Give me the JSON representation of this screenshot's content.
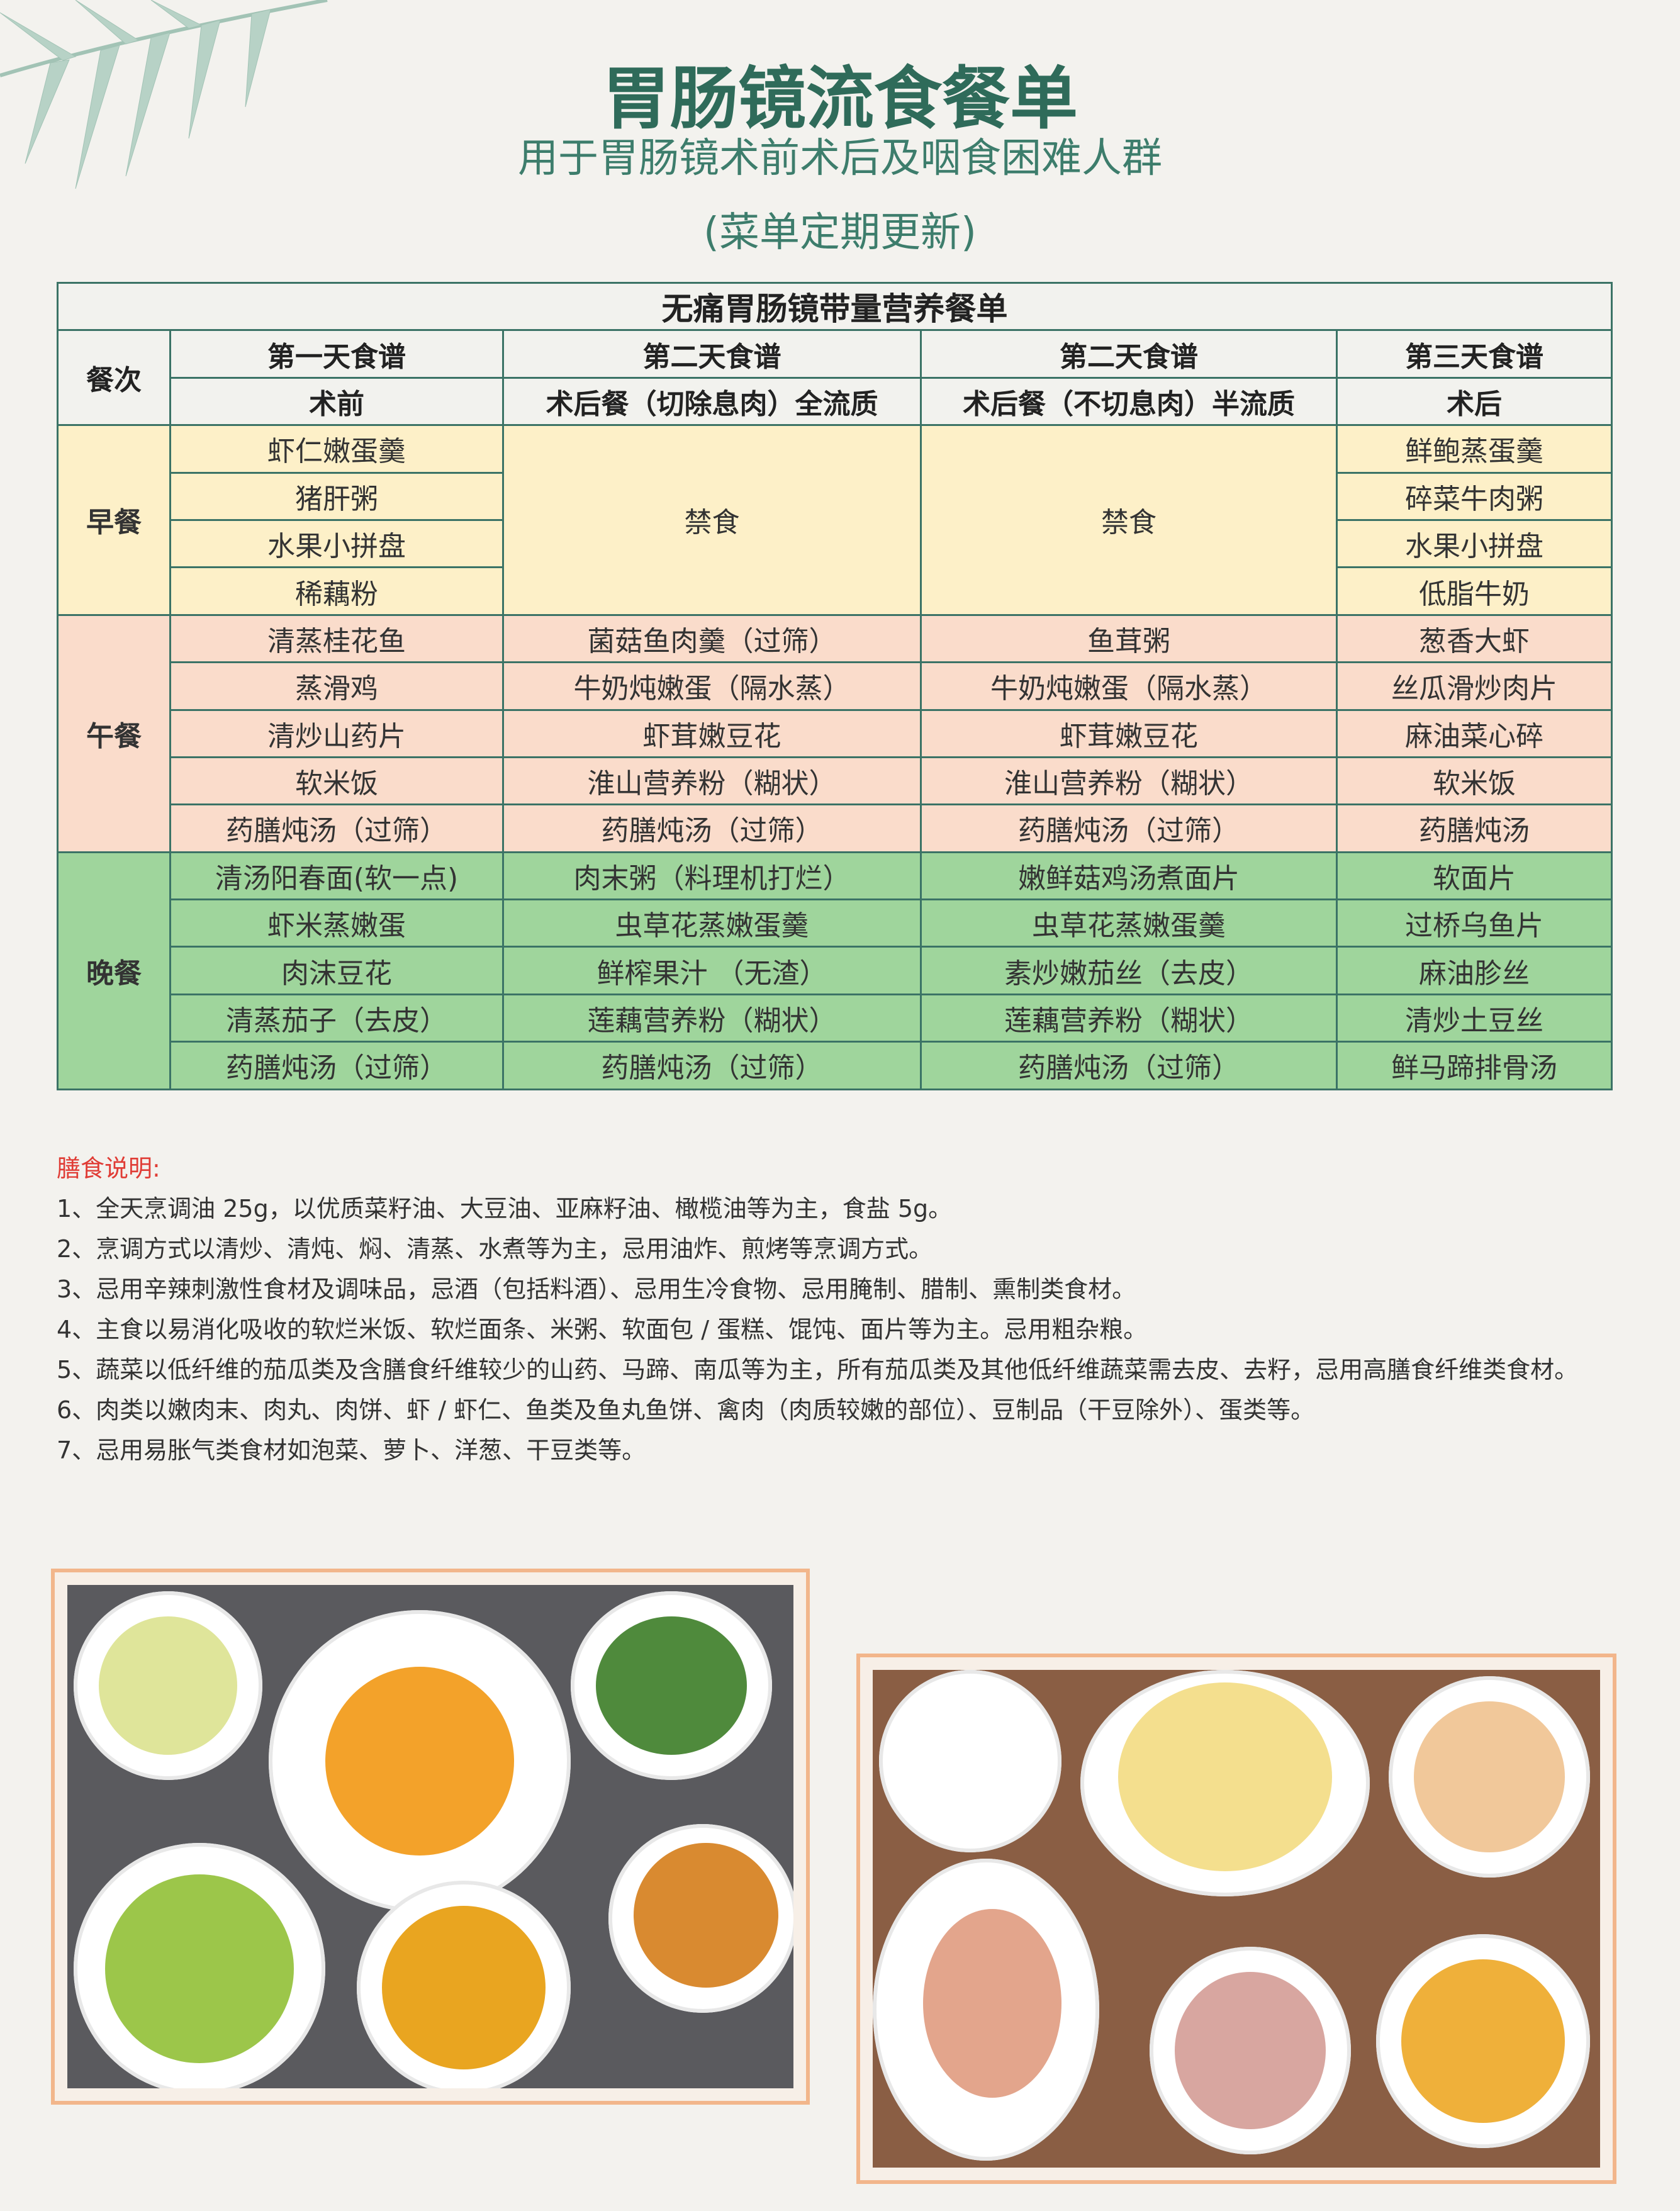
{
  "header": {
    "title": "胃肠镜流食餐单",
    "subtitle": "用于胃肠镜术前术后及咽食困难人群",
    "note": "(菜单定期更新)"
  },
  "table": {
    "title": "无痛胃肠镜带量营养餐单",
    "meal_col": "餐次",
    "days": [
      "第一天食谱",
      "第二天食谱",
      "第二天食谱",
      "第三天食谱"
    ],
    "phases": [
      "术前",
      "术后餐（切除息肉）全流质",
      "术后餐（不切息肉）半流质",
      "术后"
    ],
    "breakfast": {
      "label": "早餐",
      "day1": [
        "虾仁嫩蛋羹",
        "猪肝粥",
        "水果小拼盘",
        "稀藕粉"
      ],
      "day2": "禁食",
      "day2b": "禁食",
      "day3": [
        "鲜鲍蒸蛋羹",
        "碎菜牛肉粥",
        "水果小拼盘",
        "低脂牛奶"
      ]
    },
    "lunch": {
      "label": "午餐",
      "rows": [
        [
          "清蒸桂花鱼",
          "菌菇鱼肉羹（过筛）",
          "鱼茸粥",
          "葱香大虾"
        ],
        [
          "蒸滑鸡",
          "牛奶炖嫩蛋（隔水蒸）",
          "牛奶炖嫩蛋（隔水蒸）",
          "丝瓜滑炒肉片"
        ],
        [
          "清炒山药片",
          "虾茸嫩豆花",
          "虾茸嫩豆花",
          "麻油菜心碎"
        ],
        [
          "软米饭",
          "淮山营养粉（糊状）",
          "淮山营养粉（糊状）",
          "软米饭"
        ],
        [
          "药膳炖汤（过筛）",
          "药膳炖汤（过筛）",
          "药膳炖汤（过筛）",
          "药膳炖汤"
        ]
      ]
    },
    "dinner": {
      "label": "晚餐",
      "rows": [
        [
          "清汤阳春面(软一点)",
          "肉末粥（料理机打烂）",
          "嫩鲜菇鸡汤煮面片",
          "软面片"
        ],
        [
          "虾米蒸嫩蛋",
          "虫草花蒸嫩蛋羹",
          "虫草花蒸嫩蛋羹",
          "过桥乌鱼片"
        ],
        [
          "肉沫豆花",
          "鲜榨果汁 （无渣）",
          "素炒嫩茄丝（去皮）",
          "麻油胗丝"
        ],
        [
          "清蒸茄子（去皮）",
          "莲藕营养粉（糊状）",
          "莲藕营养粉（糊状）",
          "清炒土豆丝"
        ],
        [
          "药膳炖汤（过筛）",
          "药膳炖汤（过筛）",
          "药膳炖汤（过筛）",
          "鲜马蹄排骨汤"
        ]
      ]
    }
  },
  "notes": {
    "heading": "膳食说明:",
    "items": [
      "1、全天烹调油 25g，以优质菜籽油、大豆油、亚麻籽油、橄榄油等为主，食盐 5g。",
      "2、烹调方式以清炒、清炖、焖、清蒸、水煮等为主，忌用油炸、煎烤等烹调方式。",
      "3、忌用辛辣刺激性食材及调味品，忌酒（包括料酒）、忌用生冷食物、忌用腌制、腊制、熏制类食材。",
      "4、主食以易消化吸收的软烂米饭、软烂面条、米粥、软面包 / 蛋糕、馄饨、面片等为主。忌用粗杂粮。",
      "5、蔬菜以低纤维的茄瓜类及含膳食纤维较少的山药、马蹄、南瓜等为主，所有茄瓜类及其他低纤维蔬菜需去皮、去籽，忌用高膳食纤维类食材。",
      "6、肉类以嫩肉末、肉丸、肉饼、虾 / 虾仁、鱼类及鱼丸鱼饼、禽肉（肉质较嫩的部位）、豆制品（干豆除外）、蛋类等。",
      "7、忌用易胀气类食材如泡菜、萝卜、洋葱、干豆类等。"
    ]
  },
  "colors": {
    "title": "#2f6b5a",
    "border": "#3b7366",
    "breakfast": "#fdf0c8",
    "lunch": "#fadccb",
    "dinner": "#9fd59c",
    "note_heading": "#e03c35",
    "frame": "#f2b68b"
  }
}
